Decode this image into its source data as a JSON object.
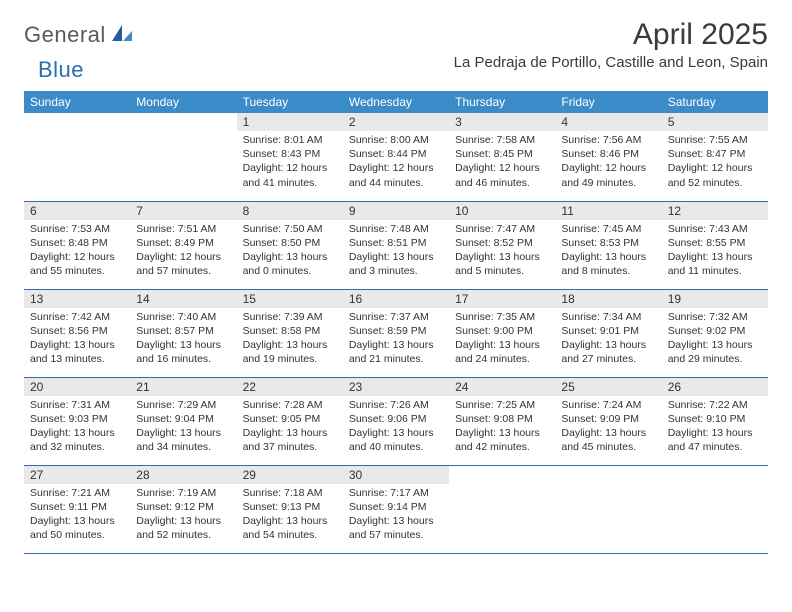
{
  "logo": {
    "part1": "General",
    "part2": "Blue"
  },
  "title": "April 2025",
  "location": "La Pedraja de Portillo, Castille and Leon, Spain",
  "colors": {
    "header_bg": "#3b8bc9",
    "header_text": "#ffffff",
    "daynum_bg": "#e9e9e9",
    "border": "#2a6fb5",
    "text": "#333333",
    "logo_gray": "#5a5a5a",
    "logo_blue": "#2a6fb5"
  },
  "weekdays": [
    "Sunday",
    "Monday",
    "Tuesday",
    "Wednesday",
    "Thursday",
    "Friday",
    "Saturday"
  ],
  "weeks": [
    [
      null,
      null,
      {
        "n": "1",
        "sr": "Sunrise: 8:01 AM",
        "ss": "Sunset: 8:43 PM",
        "dl": "Daylight: 12 hours and 41 minutes."
      },
      {
        "n": "2",
        "sr": "Sunrise: 8:00 AM",
        "ss": "Sunset: 8:44 PM",
        "dl": "Daylight: 12 hours and 44 minutes."
      },
      {
        "n": "3",
        "sr": "Sunrise: 7:58 AM",
        "ss": "Sunset: 8:45 PM",
        "dl": "Daylight: 12 hours and 46 minutes."
      },
      {
        "n": "4",
        "sr": "Sunrise: 7:56 AM",
        "ss": "Sunset: 8:46 PM",
        "dl": "Daylight: 12 hours and 49 minutes."
      },
      {
        "n": "5",
        "sr": "Sunrise: 7:55 AM",
        "ss": "Sunset: 8:47 PM",
        "dl": "Daylight: 12 hours and 52 minutes."
      }
    ],
    [
      {
        "n": "6",
        "sr": "Sunrise: 7:53 AM",
        "ss": "Sunset: 8:48 PM",
        "dl": "Daylight: 12 hours and 55 minutes."
      },
      {
        "n": "7",
        "sr": "Sunrise: 7:51 AM",
        "ss": "Sunset: 8:49 PM",
        "dl": "Daylight: 12 hours and 57 minutes."
      },
      {
        "n": "8",
        "sr": "Sunrise: 7:50 AM",
        "ss": "Sunset: 8:50 PM",
        "dl": "Daylight: 13 hours and 0 minutes."
      },
      {
        "n": "9",
        "sr": "Sunrise: 7:48 AM",
        "ss": "Sunset: 8:51 PM",
        "dl": "Daylight: 13 hours and 3 minutes."
      },
      {
        "n": "10",
        "sr": "Sunrise: 7:47 AM",
        "ss": "Sunset: 8:52 PM",
        "dl": "Daylight: 13 hours and 5 minutes."
      },
      {
        "n": "11",
        "sr": "Sunrise: 7:45 AM",
        "ss": "Sunset: 8:53 PM",
        "dl": "Daylight: 13 hours and 8 minutes."
      },
      {
        "n": "12",
        "sr": "Sunrise: 7:43 AM",
        "ss": "Sunset: 8:55 PM",
        "dl": "Daylight: 13 hours and 11 minutes."
      }
    ],
    [
      {
        "n": "13",
        "sr": "Sunrise: 7:42 AM",
        "ss": "Sunset: 8:56 PM",
        "dl": "Daylight: 13 hours and 13 minutes."
      },
      {
        "n": "14",
        "sr": "Sunrise: 7:40 AM",
        "ss": "Sunset: 8:57 PM",
        "dl": "Daylight: 13 hours and 16 minutes."
      },
      {
        "n": "15",
        "sr": "Sunrise: 7:39 AM",
        "ss": "Sunset: 8:58 PM",
        "dl": "Daylight: 13 hours and 19 minutes."
      },
      {
        "n": "16",
        "sr": "Sunrise: 7:37 AM",
        "ss": "Sunset: 8:59 PM",
        "dl": "Daylight: 13 hours and 21 minutes."
      },
      {
        "n": "17",
        "sr": "Sunrise: 7:35 AM",
        "ss": "Sunset: 9:00 PM",
        "dl": "Daylight: 13 hours and 24 minutes."
      },
      {
        "n": "18",
        "sr": "Sunrise: 7:34 AM",
        "ss": "Sunset: 9:01 PM",
        "dl": "Daylight: 13 hours and 27 minutes."
      },
      {
        "n": "19",
        "sr": "Sunrise: 7:32 AM",
        "ss": "Sunset: 9:02 PM",
        "dl": "Daylight: 13 hours and 29 minutes."
      }
    ],
    [
      {
        "n": "20",
        "sr": "Sunrise: 7:31 AM",
        "ss": "Sunset: 9:03 PM",
        "dl": "Daylight: 13 hours and 32 minutes."
      },
      {
        "n": "21",
        "sr": "Sunrise: 7:29 AM",
        "ss": "Sunset: 9:04 PM",
        "dl": "Daylight: 13 hours and 34 minutes."
      },
      {
        "n": "22",
        "sr": "Sunrise: 7:28 AM",
        "ss": "Sunset: 9:05 PM",
        "dl": "Daylight: 13 hours and 37 minutes."
      },
      {
        "n": "23",
        "sr": "Sunrise: 7:26 AM",
        "ss": "Sunset: 9:06 PM",
        "dl": "Daylight: 13 hours and 40 minutes."
      },
      {
        "n": "24",
        "sr": "Sunrise: 7:25 AM",
        "ss": "Sunset: 9:08 PM",
        "dl": "Daylight: 13 hours and 42 minutes."
      },
      {
        "n": "25",
        "sr": "Sunrise: 7:24 AM",
        "ss": "Sunset: 9:09 PM",
        "dl": "Daylight: 13 hours and 45 minutes."
      },
      {
        "n": "26",
        "sr": "Sunrise: 7:22 AM",
        "ss": "Sunset: 9:10 PM",
        "dl": "Daylight: 13 hours and 47 minutes."
      }
    ],
    [
      {
        "n": "27",
        "sr": "Sunrise: 7:21 AM",
        "ss": "Sunset: 9:11 PM",
        "dl": "Daylight: 13 hours and 50 minutes."
      },
      {
        "n": "28",
        "sr": "Sunrise: 7:19 AM",
        "ss": "Sunset: 9:12 PM",
        "dl": "Daylight: 13 hours and 52 minutes."
      },
      {
        "n": "29",
        "sr": "Sunrise: 7:18 AM",
        "ss": "Sunset: 9:13 PM",
        "dl": "Daylight: 13 hours and 54 minutes."
      },
      {
        "n": "30",
        "sr": "Sunrise: 7:17 AM",
        "ss": "Sunset: 9:14 PM",
        "dl": "Daylight: 13 hours and 57 minutes."
      },
      null,
      null,
      null
    ]
  ]
}
